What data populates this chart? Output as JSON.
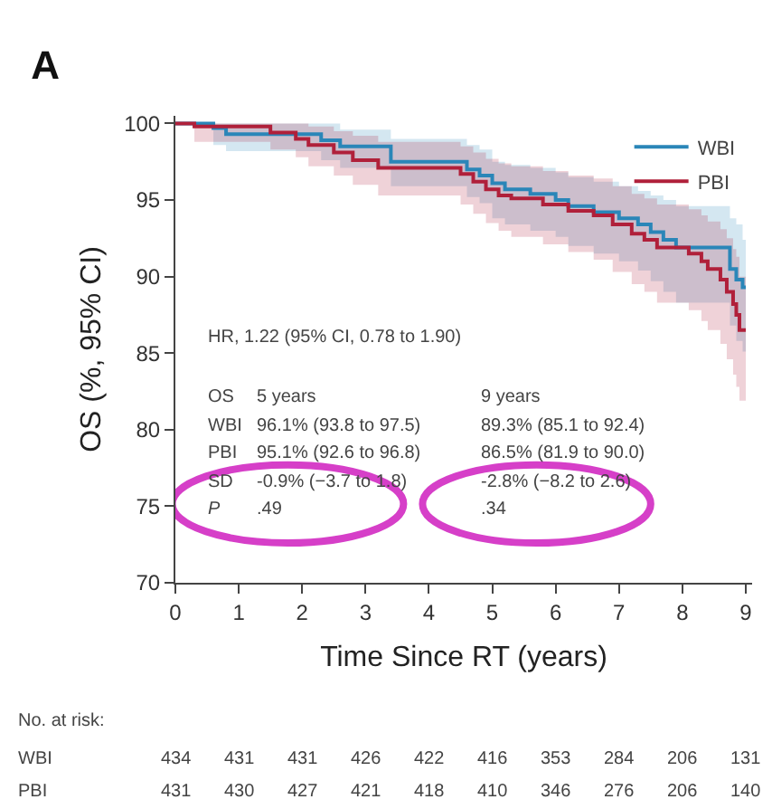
{
  "chart_data": {
    "type": "step",
    "title": "A",
    "xlabel": "Time Since RT (years)",
    "ylabel": "OS (%, 95% CI)",
    "xlim": [
      0,
      9.1
    ],
    "ylim": [
      70,
      100.5
    ],
    "xticks": [
      0,
      1,
      2,
      3,
      4,
      5,
      6,
      7,
      8,
      9
    ],
    "yticks": [
      70,
      75,
      80,
      85,
      90,
      95,
      100
    ],
    "legend": "top right",
    "series": [
      {
        "name": "WBI",
        "color": "#2a86b8",
        "x": [
          0,
          0.6,
          0.8,
          2.3,
          2.6,
          3.4,
          4.6,
          4.8,
          5.0,
          5.2,
          5.6,
          6.0,
          6.2,
          6.6,
          7.0,
          7.3,
          7.5,
          7.7,
          7.9,
          8.75,
          8.85,
          8.95,
          9.0
        ],
        "values": [
          100,
          99.7,
          99.3,
          98.9,
          98.5,
          97.5,
          97.0,
          96.6,
          96.1,
          95.7,
          95.4,
          95.0,
          94.6,
          94.2,
          93.8,
          93.4,
          92.9,
          92.4,
          91.9,
          90.5,
          89.8,
          89.3,
          89.3
        ],
        "upper": [
          100,
          100,
          100,
          100,
          99.6,
          99.0,
          98.6,
          98.3,
          97.5,
          97.3,
          97.1,
          96.8,
          96.5,
          96.2,
          95.9,
          95.6,
          95.3,
          95.0,
          94.6,
          93.8,
          93.4,
          92.4,
          92.4
        ],
        "lower": [
          100,
          98.6,
          98.2,
          97.6,
          97.1,
          95.9,
          95.2,
          94.8,
          93.8,
          93.4,
          93.0,
          92.6,
          92.0,
          91.5,
          91.0,
          90.4,
          89.7,
          89.0,
          88.3,
          86.8,
          85.8,
          85.1,
          85.1
        ]
      },
      {
        "name": "PBI",
        "color": "#b0203a",
        "x": [
          0,
          0.3,
          1.5,
          1.9,
          2.1,
          2.5,
          2.8,
          3.2,
          4.5,
          4.7,
          4.9,
          5.1,
          5.3,
          5.8,
          6.2,
          6.6,
          6.9,
          7.2,
          7.4,
          7.6,
          8.1,
          8.3,
          8.4,
          8.6,
          8.7,
          8.8,
          8.85,
          8.9,
          9.0
        ],
        "values": [
          100,
          99.8,
          99.4,
          99.0,
          98.6,
          98.1,
          97.6,
          97.1,
          96.7,
          96.2,
          95.7,
          95.3,
          95.1,
          94.7,
          94.3,
          94.0,
          93.4,
          92.8,
          92.4,
          91.9,
          91.5,
          91.0,
          90.5,
          89.8,
          89.0,
          88.2,
          87.5,
          86.5,
          86.5
        ],
        "upper": [
          100,
          100,
          100,
          100,
          99.8,
          99.5,
          99.2,
          98.8,
          98.5,
          98.1,
          97.7,
          97.4,
          97.2,
          96.9,
          96.6,
          96.4,
          95.9,
          95.4,
          95.1,
          94.7,
          94.4,
          94.0,
          93.6,
          93.1,
          92.5,
          91.8,
          91.3,
          90.0,
          90.0
        ],
        "lower": [
          100,
          98.8,
          98.3,
          97.8,
          97.2,
          96.6,
          96.0,
          95.3,
          94.7,
          94.1,
          93.5,
          93.0,
          92.6,
          92.1,
          91.6,
          91.1,
          90.3,
          89.5,
          89.0,
          88.3,
          87.8,
          87.1,
          86.5,
          85.6,
          84.6,
          83.6,
          82.8,
          81.9,
          81.9
        ]
      }
    ],
    "annotations": [
      "HR, 1.22 (95% CI, 0.78 to 1.90)",
      "OS",
      "5 years",
      "9 years",
      "WBI",
      "96.1% (93.8 to 97.5)",
      "89.3% (85.1 to 92.4)",
      "PBI",
      "95.1% (92.6 to 96.8)",
      "86.5% (81.9 to 90.0)",
      "SD",
      "-0.9% (−3.7 to 1.8)",
      "-2.8% (−8.2 to 2.6)",
      "P",
      ".49",
      ".34",
      "No. at risk:",
      "WBI",
      "PBI",
      "434",
      "431",
      "431",
      "426",
      "422",
      "416",
      "353",
      "284",
      "206",
      "131",
      "431",
      "430",
      "427",
      "421",
      "418",
      "410",
      "346",
      "276",
      "206",
      "140"
    ]
  }
}
